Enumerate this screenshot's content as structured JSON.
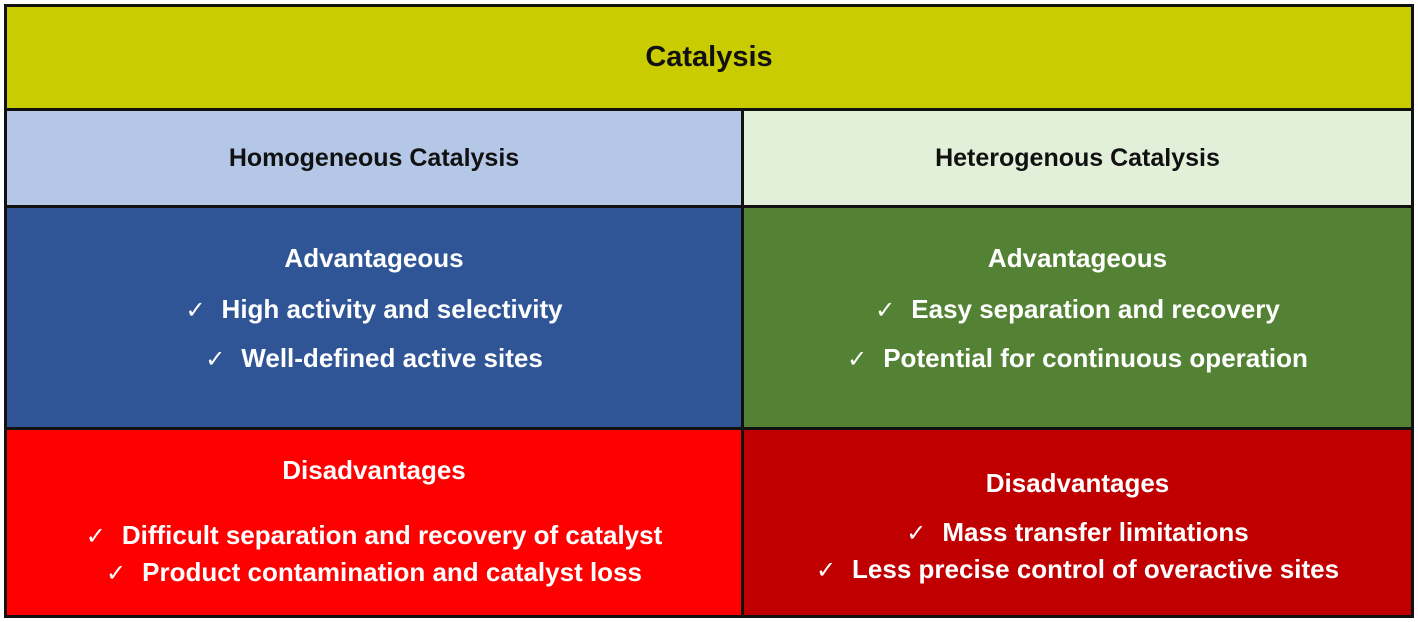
{
  "title": "Catalysis",
  "columns": [
    {
      "heading": "Homogeneous Catalysis",
      "advantages": {
        "title": "Advantageous",
        "items": [
          "High activity and selectivity",
          "Well-defined active sites"
        ]
      },
      "disadvantages": {
        "title": "Disadvantages",
        "items": [
          "Difficult separation and recovery of catalyst",
          "Product contamination and catalyst loss"
        ]
      }
    },
    {
      "heading": "Heterogenous Catalysis",
      "advantages": {
        "title": "Advantageous",
        "items": [
          "Easy separation and recovery",
          "Potential for continuous operation"
        ]
      },
      "disadvantages": {
        "title": "Disadvantages",
        "items": [
          "Mass transfer limitations",
          "Less precise control of overactive sites"
        ]
      }
    }
  ],
  "check_mark": "✓",
  "colors": {
    "title_bg": "#c9cc00",
    "homogeneous_header_bg": "#b4c7e7",
    "heterogeneous_header_bg": "#e2efd9",
    "homogeneous_advantages_bg": "#2f5597",
    "heterogeneous_advantages_bg": "#548235",
    "homogeneous_disadvantages_bg": "#ff0000",
    "heterogeneous_disadvantages_bg": "#c00000"
  }
}
